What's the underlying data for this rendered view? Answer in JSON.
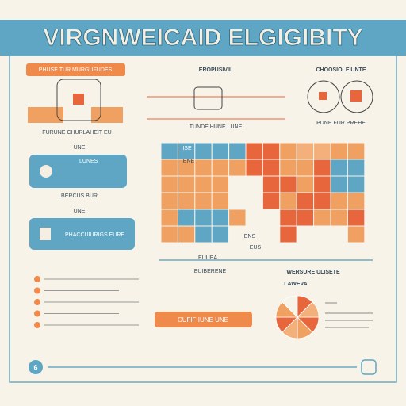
{
  "header": {
    "title": "VIRGNWEICAID ELGIGIBITY"
  },
  "top": {
    "left_banner": "PHUSE TUR MURGUFUDES",
    "middle_heading": "EROPUSIVIL",
    "right_heading": "CHOOSIOLE UNTE",
    "left_caption": "FURUNE CHURLAHEIT EU",
    "middle_caption": "TUNDE HUNE LUNE",
    "right_caption": "PUNE FUR PREHE"
  },
  "cards": [
    {
      "heading": "UNE",
      "label": "LUNES",
      "caption": "BERCUS BUR"
    },
    {
      "heading": "UNE",
      "label": "PHACCUIURIGS EURE"
    }
  ],
  "map": {
    "corner_label": "ISE",
    "top_label": "ENE",
    "bottom_labels": [
      "ENS",
      "EUS"
    ],
    "axis_label": "EUUEA",
    "footer_label": "EUIBERENE"
  },
  "right": {
    "heading": "WERSURE ULISETE",
    "subheading": "LAWEVA"
  },
  "button": {
    "label": "CUFIF IUNE UNE"
  },
  "footer": {
    "page": "6"
  }
}
